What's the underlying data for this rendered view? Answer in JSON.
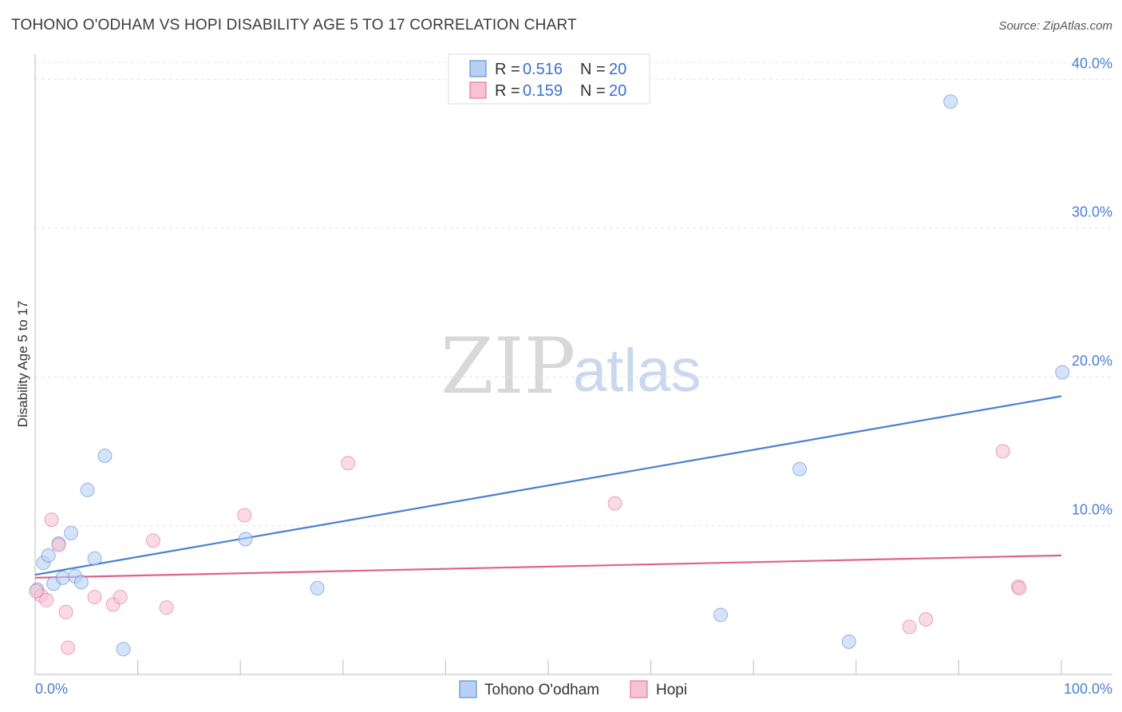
{
  "header": {
    "title": "TOHONO O'ODHAM VS HOPI DISABILITY AGE 5 TO 17 CORRELATION CHART",
    "source": "Source: ZipAtlas.com"
  },
  "watermark": {
    "zip": "ZIP",
    "atlas": "atlas"
  },
  "colors": {
    "blue": "#4a7fd0",
    "blue_fill": "#b8d0f3",
    "pink": "#e06090",
    "pink_fill": "#f7c3d3"
  },
  "legend": {
    "rows": [
      {
        "r_label": "R = ",
        "r_value": "0.516",
        "n_label": "N = ",
        "n_value": "20"
      },
      {
        "r_label": "R = ",
        "r_value": "0.159",
        "n_label": "N = ",
        "n_value": "20"
      }
    ]
  },
  "chart_data": {
    "type": "scatter",
    "title": "TOHONO O'ODHAM VS HOPI DISABILITY AGE 5 TO 17 CORRELATION CHART",
    "xlabel": "",
    "ylabel": "Disability Age 5 to 17",
    "xlim": [
      0,
      100
    ],
    "ylim": [
      0,
      42
    ],
    "x_tick_labels": [
      "0.0%",
      "100.0%"
    ],
    "y_ticks": [
      {
        "value": 10,
        "label": "10.0%"
      },
      {
        "value": 20,
        "label": "20.0%"
      },
      {
        "value": 30,
        "label": "30.0%"
      },
      {
        "value": 40,
        "label": "40.0%"
      }
    ],
    "series": [
      {
        "name": "Tohono O'odham",
        "color": "#4a7fd0",
        "points": [
          {
            "x": 0.2,
            "y": 5.7
          },
          {
            "x": 0.8,
            "y": 7.5
          },
          {
            "x": 1.3,
            "y": 8.0
          },
          {
            "x": 1.8,
            "y": 6.1
          },
          {
            "x": 2.3,
            "y": 8.8
          },
          {
            "x": 2.7,
            "y": 6.5
          },
          {
            "x": 3.5,
            "y": 9.5
          },
          {
            "x": 3.9,
            "y": 6.6
          },
          {
            "x": 4.5,
            "y": 6.2
          },
          {
            "x": 5.1,
            "y": 12.4
          },
          {
            "x": 5.8,
            "y": 7.8
          },
          {
            "x": 6.8,
            "y": 14.7
          },
          {
            "x": 8.6,
            "y": 1.7
          },
          {
            "x": 20.5,
            "y": 9.1
          },
          {
            "x": 27.5,
            "y": 5.8
          },
          {
            "x": 66.8,
            "y": 4.0
          },
          {
            "x": 74.5,
            "y": 13.8
          },
          {
            "x": 79.3,
            "y": 2.2
          },
          {
            "x": 89.2,
            "y": 38.5
          },
          {
            "x": 100.1,
            "y": 20.3
          }
        ],
        "trend": {
          "x0": 0,
          "y0": 6.7,
          "x1": 100,
          "y1": 18.7
        }
      },
      {
        "name": "Hopi",
        "color": "#e06090",
        "points": [
          {
            "x": 0.6,
            "y": 5.3
          },
          {
            "x": 1.1,
            "y": 5.0
          },
          {
            "x": 1.6,
            "y": 10.4
          },
          {
            "x": 2.3,
            "y": 8.7
          },
          {
            "x": 3.0,
            "y": 4.2
          },
          {
            "x": 3.2,
            "y": 1.8
          },
          {
            "x": 5.8,
            "y": 5.2
          },
          {
            "x": 7.6,
            "y": 4.7
          },
          {
            "x": 8.3,
            "y": 5.2
          },
          {
            "x": 11.5,
            "y": 9.0
          },
          {
            "x": 12.8,
            "y": 4.5
          },
          {
            "x": 20.4,
            "y": 10.7
          },
          {
            "x": 30.5,
            "y": 14.2
          },
          {
            "x": 56.5,
            "y": 11.5
          },
          {
            "x": 85.2,
            "y": 3.2
          },
          {
            "x": 86.8,
            "y": 3.7
          },
          {
            "x": 94.3,
            "y": 15.0
          },
          {
            "x": 95.8,
            "y": 5.9
          },
          {
            "x": 95.9,
            "y": 5.8
          },
          {
            "x": 0.1,
            "y": 5.6
          }
        ],
        "trend": {
          "x0": 0,
          "y0": 6.5,
          "x1": 100,
          "y1": 8.0
        }
      }
    ]
  }
}
